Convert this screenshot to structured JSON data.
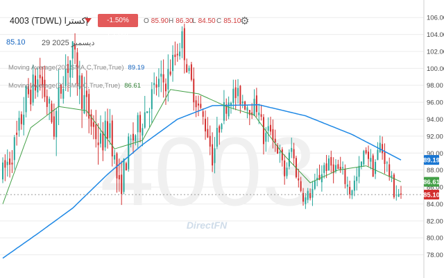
{
  "header": {
    "title": "4003  (TDWL) إكسترا",
    "change": "-1.50%(-1.30)",
    "open_label": "O",
    "open": "85.90",
    "high_label": "H",
    "high": "86.30",
    "low_label": "L",
    "low": "84.50",
    "close_label": "C",
    "close": "85.10",
    "last_price": "85.10",
    "date": "29 2025 ديسمبر",
    "settings_icon": "gear-icon"
  },
  "indicators": {
    "ma200_label": "Moving Average(200,SMA,C,True,True)",
    "ma200_value": "89.19",
    "ma21_label": "Moving Average(21,SMA,C,True,True)",
    "ma21_value": "86.61"
  },
  "watermark": {
    "symbol": "4003",
    "brand": "DirectFN"
  },
  "colors": {
    "up": "#26a69a",
    "down": "#d32f2f",
    "ma200": "#1e88e5",
    "ma21": "#43a047",
    "badge_ma200": "#1976d2",
    "badge_ma21": "#43a047",
    "badge_last": "#d32f2f"
  },
  "chart_data": {
    "type": "candlestick",
    "y_axis": {
      "min": 76,
      "max": 107,
      "ticks": [
        78,
        80,
        82,
        84,
        86,
        88,
        90,
        92,
        94,
        96,
        98,
        100,
        102,
        104,
        106
      ],
      "position": "right",
      "grid": true
    },
    "last_price_line": 85.1,
    "price_path_anchors": [
      {
        "i": 0,
        "p": 87.5
      },
      {
        "i": 6,
        "p": 91.5
      },
      {
        "i": 10,
        "p": 96.5
      },
      {
        "i": 16,
        "p": 99
      },
      {
        "i": 22,
        "p": 93
      },
      {
        "i": 26,
        "p": 99.5
      },
      {
        "i": 30,
        "p": 101.5
      },
      {
        "i": 34,
        "p": 97
      },
      {
        "i": 38,
        "p": 93.5
      },
      {
        "i": 42,
        "p": 91
      },
      {
        "i": 46,
        "p": 93.5
      },
      {
        "i": 48,
        "p": 89
      },
      {
        "i": 50,
        "p": 85.5
      },
      {
        "i": 54,
        "p": 90.5
      },
      {
        "i": 58,
        "p": 93
      },
      {
        "i": 62,
        "p": 95.5
      },
      {
        "i": 66,
        "p": 98
      },
      {
        "i": 70,
        "p": 98.5
      },
      {
        "i": 74,
        "p": 101.5
      },
      {
        "i": 77,
        "p": 103.5
      },
      {
        "i": 80,
        "p": 99
      },
      {
        "i": 84,
        "p": 95.5
      },
      {
        "i": 88,
        "p": 92.5
      },
      {
        "i": 90,
        "p": 89.5
      },
      {
        "i": 94,
        "p": 94.5
      },
      {
        "i": 98,
        "p": 97
      },
      {
        "i": 102,
        "p": 96.5
      },
      {
        "i": 106,
        "p": 95.5
      },
      {
        "i": 110,
        "p": 95.5
      },
      {
        "i": 112,
        "p": 91.5
      },
      {
        "i": 115,
        "p": 93
      },
      {
        "i": 118,
        "p": 90.5
      },
      {
        "i": 121,
        "p": 87.5
      },
      {
        "i": 124,
        "p": 90.5
      },
      {
        "i": 127,
        "p": 86.5
      },
      {
        "i": 130,
        "p": 84.5
      },
      {
        "i": 134,
        "p": 86
      },
      {
        "i": 138,
        "p": 88.5
      },
      {
        "i": 142,
        "p": 88.5
      },
      {
        "i": 146,
        "p": 87.5
      },
      {
        "i": 149,
        "p": 85.5
      },
      {
        "i": 152,
        "p": 87
      },
      {
        "i": 156,
        "p": 90.5
      },
      {
        "i": 159,
        "p": 88
      },
      {
        "i": 162,
        "p": 91
      },
      {
        "i": 165,
        "p": 88.5
      },
      {
        "i": 168,
        "p": 85.5
      },
      {
        "i": 171,
        "p": 85.1
      }
    ],
    "volatility_anchors": [
      {
        "i": 0,
        "p": 3
      },
      {
        "i": 30,
        "p": 3.6
      },
      {
        "i": 60,
        "p": 2.8
      },
      {
        "i": 90,
        "p": 2.2
      },
      {
        "i": 130,
        "p": 1.8
      },
      {
        "i": 171,
        "p": 1.6
      }
    ],
    "ma200_anchors": [
      {
        "i": 0,
        "p": 77.6
      },
      {
        "i": 15,
        "p": 80.5
      },
      {
        "i": 30,
        "p": 83.5
      },
      {
        "i": 45,
        "p": 87.5
      },
      {
        "i": 60,
        "p": 91
      },
      {
        "i": 75,
        "p": 94
      },
      {
        "i": 90,
        "p": 95.6
      },
      {
        "i": 110,
        "p": 95.7
      },
      {
        "i": 130,
        "p": 94.4
      },
      {
        "i": 150,
        "p": 92.2
      },
      {
        "i": 171,
        "p": 89.19
      }
    ],
    "ma21_anchors": [
      {
        "i": 0,
        "p": 84
      },
      {
        "i": 12,
        "p": 93
      },
      {
        "i": 24,
        "p": 95.5
      },
      {
        "i": 36,
        "p": 95
      },
      {
        "i": 48,
        "p": 90.5
      },
      {
        "i": 60,
        "p": 91.5
      },
      {
        "i": 72,
        "p": 97.5
      },
      {
        "i": 84,
        "p": 97
      },
      {
        "i": 96,
        "p": 95.5
      },
      {
        "i": 108,
        "p": 94.5
      },
      {
        "i": 120,
        "p": 90
      },
      {
        "i": 132,
        "p": 86.5
      },
      {
        "i": 144,
        "p": 88
      },
      {
        "i": 156,
        "p": 88.5
      },
      {
        "i": 171,
        "p": 86.61
      }
    ],
    "candle_count": 172
  }
}
